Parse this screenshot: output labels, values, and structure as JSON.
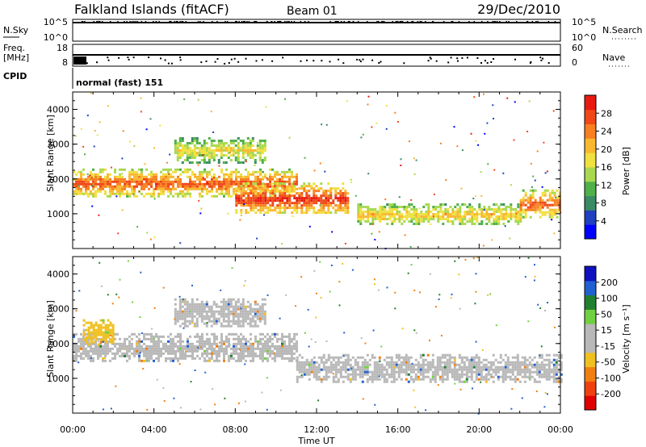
{
  "header": {
    "station": "Falkland Islands (fitACF)",
    "beam": "Beam 01",
    "date": "29/Dec/2010"
  },
  "top_panels": {
    "nsky_label": "N.Sky",
    "nsky_ticks": [
      "10^5",
      "10^0"
    ],
    "nsearch_label": "N.Search",
    "nsearch_ticks": [
      "10^5",
      "10^0"
    ],
    "freq_label_1": "Freq.",
    "freq_label_2": "[MHz]",
    "freq_ticks": [
      "18",
      "8"
    ],
    "nave_label": "Nave",
    "nave_ticks": [
      "60",
      "0"
    ],
    "cpid_label": "CPID",
    "cpid_value": "normal (fast) 151"
  },
  "colors": {
    "power_scale": [
      "#0000ff",
      "#2040c0",
      "#3a8a64",
      "#50b04a",
      "#a8d850",
      "#f0e040",
      "#f8b830",
      "#f88020",
      "#f04818",
      "#e81a10"
    ],
    "velocity_scale": [
      "#1010c0",
      "#2060d0",
      "#208030",
      "#70d040",
      "#b8b8b8",
      "#b8b8b8",
      "#f0c020",
      "#f08010",
      "#f04010",
      "#e00000"
    ],
    "scatter_gray": "#b8b8b8"
  },
  "chart_data": [
    {
      "type": "heatmap",
      "name": "Power",
      "xlabel": "",
      "ylabel": "Slant Range [km]",
      "xlim": [
        0,
        24
      ],
      "ylim": [
        0,
        4500
      ],
      "yticks": [
        "1000",
        "2000",
        "3000",
        "4000"
      ],
      "colorbar_label": "Power [dB]",
      "colorbar_ticks": [
        "4",
        "8",
        "12",
        "16",
        "20",
        "24",
        "28"
      ],
      "bands": [
        {
          "range_km": [
            1500,
            2300
          ],
          "power_db": 24,
          "from_h": 0,
          "to_h": 11
        },
        {
          "range_km": [
            1000,
            1900
          ],
          "power_db": 26,
          "from_h": 8,
          "to_h": 13.5
        },
        {
          "range_km": [
            700,
            1300
          ],
          "power_db": 18,
          "from_h": 14,
          "to_h": 22
        },
        {
          "range_km": [
            900,
            1700
          ],
          "power_db": 24,
          "from_h": 22,
          "to_h": 24
        },
        {
          "range_km": [
            2500,
            3200
          ],
          "power_db": 16,
          "from_h": 5,
          "to_h": 9.5
        }
      ]
    },
    {
      "type": "heatmap",
      "name": "Velocity",
      "xlabel": "Time UT",
      "ylabel": "Slant Range [km]",
      "xlim": [
        0,
        24
      ],
      "ylim": [
        0,
        4500
      ],
      "yticks": [
        "1000",
        "2000",
        "3000",
        "4000"
      ],
      "xticks": [
        "00:00",
        "04:00",
        "08:00",
        "12:00",
        "16:00",
        "20:00",
        "00:00"
      ],
      "colorbar_label": "Velocity [m s⁻¹]",
      "colorbar_ticks": [
        "200",
        "100",
        "50",
        "15",
        "-15",
        "-50",
        "-100",
        "-200"
      ],
      "bands": [
        {
          "range_km": [
            1500,
            2300
          ],
          "velocity_ms": 0,
          "from_h": 0,
          "to_h": 11
        },
        {
          "range_km": [
            900,
            1700
          ],
          "velocity_ms": 0,
          "from_h": 11,
          "to_h": 24
        },
        {
          "range_km": [
            2500,
            3300
          ],
          "velocity_ms": 0,
          "from_h": 5,
          "to_h": 9.5
        },
        {
          "range_km": [
            2000,
            2700
          ],
          "velocity_ms": -80,
          "from_h": 0.5,
          "to_h": 2
        }
      ]
    }
  ]
}
